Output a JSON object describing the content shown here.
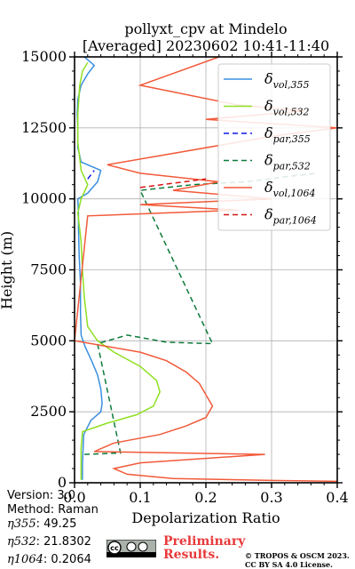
{
  "chart_data": {
    "type": "line",
    "title_line1": "pollyxt_cpv at Mindelo",
    "title_line2": "[Averaged] 20230602 10:41-11:40",
    "xlabel": "Depolarization Ratio",
    "ylabel": "Height (m)",
    "xlim": [
      0.0,
      0.4
    ],
    "ylim": [
      0,
      15000
    ],
    "xticks": [
      "0.0",
      "0.1",
      "0.2",
      "0.3",
      "0.4"
    ],
    "yticks": [
      "0",
      "2500",
      "5000",
      "7500",
      "10000",
      "12500",
      "15000"
    ],
    "grid": true,
    "legend_position": "top-right",
    "series": [
      {
        "key": "vol355",
        "name_base": "δ",
        "name_sub": "vol,355",
        "color": "#3a8fe0",
        "dash": "",
        "points": [
          [
            0.012,
            100
          ],
          [
            0.012,
            600
          ],
          [
            0.013,
            1200
          ],
          [
            0.014,
            1700
          ],
          [
            0.025,
            2200
          ],
          [
            0.04,
            2500
          ],
          [
            0.042,
            2800
          ],
          [
            0.04,
            3300
          ],
          [
            0.035,
            3800
          ],
          [
            0.026,
            4300
          ],
          [
            0.016,
            4800
          ],
          [
            0.01,
            5200
          ],
          [
            0.009,
            6000
          ],
          [
            0.009,
            7000
          ],
          [
            0.007,
            8000
          ],
          [
            0.006,
            9000
          ],
          [
            0.006,
            9500
          ],
          [
            0.005,
            10000
          ],
          [
            0.02,
            10200
          ],
          [
            0.035,
            10600
          ],
          [
            0.04,
            11000
          ],
          [
            0.01,
            11300
          ],
          [
            0.005,
            11800
          ],
          [
            0.005,
            12500
          ],
          [
            0.004,
            13000
          ],
          [
            0.005,
            13500
          ],
          [
            0.01,
            14000
          ],
          [
            0.02,
            14400
          ],
          [
            0.03,
            14700
          ],
          [
            0.015,
            15000
          ]
        ]
      },
      {
        "key": "vol532",
        "name_base": "δ",
        "name_sub": "vol,532",
        "color": "#8fe020",
        "dash": "",
        "points": [
          [
            0.01,
            100
          ],
          [
            0.01,
            600
          ],
          [
            0.01,
            1200
          ],
          [
            0.012,
            1800
          ],
          [
            0.05,
            2100
          ],
          [
            0.095,
            2400
          ],
          [
            0.12,
            2700
          ],
          [
            0.13,
            3200
          ],
          [
            0.125,
            3600
          ],
          [
            0.1,
            4100
          ],
          [
            0.06,
            4600
          ],
          [
            0.035,
            5000
          ],
          [
            0.02,
            5500
          ],
          [
            0.015,
            6500
          ],
          [
            0.012,
            7500
          ],
          [
            0.01,
            8500
          ],
          [
            0.005,
            9500
          ],
          [
            0.01,
            10000
          ],
          [
            0.02,
            10500
          ],
          [
            0.01,
            11000
          ],
          [
            0.005,
            12000
          ],
          [
            0.005,
            13000
          ],
          [
            0.008,
            14000
          ],
          [
            0.012,
            14500
          ],
          [
            0.02,
            14800
          ]
        ]
      },
      {
        "key": "par355",
        "name_base": "δ",
        "name_sub": "par,355",
        "color": "#0b1ae8",
        "dash": "6,4",
        "points": [
          [
            0.02,
            10700
          ],
          [
            0.03,
            11000
          ]
        ]
      },
      {
        "key": "par532",
        "name_base": "δ",
        "name_sub": "par,532",
        "color": "#0e7a3c",
        "dash": "6,4",
        "points": [
          [
            0.015,
            1000
          ],
          [
            0.07,
            1050
          ],
          [
            0.035,
            4900
          ],
          [
            0.08,
            5200
          ],
          [
            0.14,
            4950
          ],
          [
            0.21,
            4900
          ],
          [
            0.1,
            10300
          ],
          [
            0.18,
            10500
          ],
          [
            0.26,
            10600
          ],
          [
            0.33,
            10800
          ],
          [
            0.37,
            10900
          ]
        ]
      },
      {
        "key": "vol1064",
        "name_base": "δ",
        "name_sub": "vol,1064",
        "color": "#f25a3a",
        "dash": "",
        "points": [
          [
            0.4,
            50
          ],
          [
            0.3,
            80
          ],
          [
            0.15,
            150
          ],
          [
            0.08,
            300
          ],
          [
            0.06,
            500
          ],
          [
            0.1,
            700
          ],
          [
            0.29,
            1000
          ],
          [
            0.03,
            1100
          ],
          [
            0.06,
            1400
          ],
          [
            0.13,
            1700
          ],
          [
            0.17,
            2000
          ],
          [
            0.2,
            2300
          ],
          [
            0.21,
            2700
          ],
          [
            0.2,
            3100
          ],
          [
            0.19,
            3500
          ],
          [
            0.17,
            3900
          ],
          [
            0.14,
            4300
          ],
          [
            0.1,
            4600
          ],
          [
            0.05,
            4800
          ],
          [
            0.0,
            5000
          ],
          [
            0.02,
            9400
          ],
          [
            0.25,
            9600
          ],
          [
            0.1,
            9800
          ],
          [
            0.3,
            10000
          ],
          [
            0.15,
            10300
          ],
          [
            0.22,
            10600
          ],
          [
            0.1,
            10900
          ],
          [
            0.05,
            11200
          ],
          [
            0.3,
            12200
          ],
          [
            0.4,
            12500
          ],
          [
            0.2,
            12800
          ],
          [
            0.35,
            13100
          ],
          [
            0.25,
            13300
          ],
          [
            0.1,
            14000
          ],
          [
            0.22,
            15000
          ]
        ]
      },
      {
        "key": "par1064",
        "name_base": "δ",
        "name_sub": "par,1064",
        "color": "#d81414",
        "dash": "6,4",
        "points": [
          [
            0.1,
            10400
          ],
          [
            0.2,
            10700
          ]
        ]
      }
    ]
  },
  "meta": {
    "version": "Version: 3.0",
    "method": "Method: Raman",
    "eta355_label": "η355",
    "eta355_value": ":  49.25",
    "eta532_label": "η532",
    "eta532_value": ": 21.8302",
    "eta1064_label": "η1064",
    "eta1064_value": ": 0.2064"
  },
  "footer": {
    "prelim_line1": "Preliminary",
    "prelim_line2": "Results.",
    "copyright_line1": "© TROPOS & OSCM 2023.",
    "copyright_line2": "CC BY SA 4.0 License."
  },
  "license_badge": {
    "icon": "cc-by-sa-badge",
    "text": "cc by sa"
  }
}
